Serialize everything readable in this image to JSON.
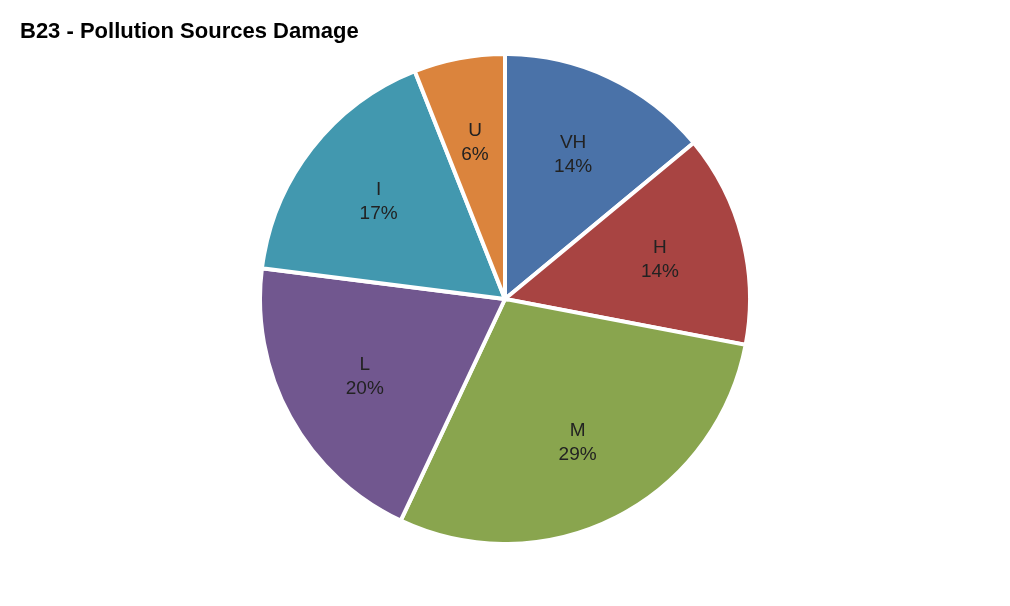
{
  "chart_data": {
    "type": "pie",
    "title": "B23 - Pollution Sources Damage",
    "categories": [
      "VH",
      "H",
      "M",
      "L",
      "I",
      "U"
    ],
    "values": [
      14,
      14,
      29,
      20,
      17,
      6
    ],
    "value_labels": [
      "14%",
      "14%",
      "29%",
      "20%",
      "17%",
      "6%"
    ],
    "colors": [
      "#4a72a8",
      "#a84442",
      "#89a54e",
      "#71578f",
      "#4298af",
      "#db843d"
    ],
    "legend": false
  }
}
